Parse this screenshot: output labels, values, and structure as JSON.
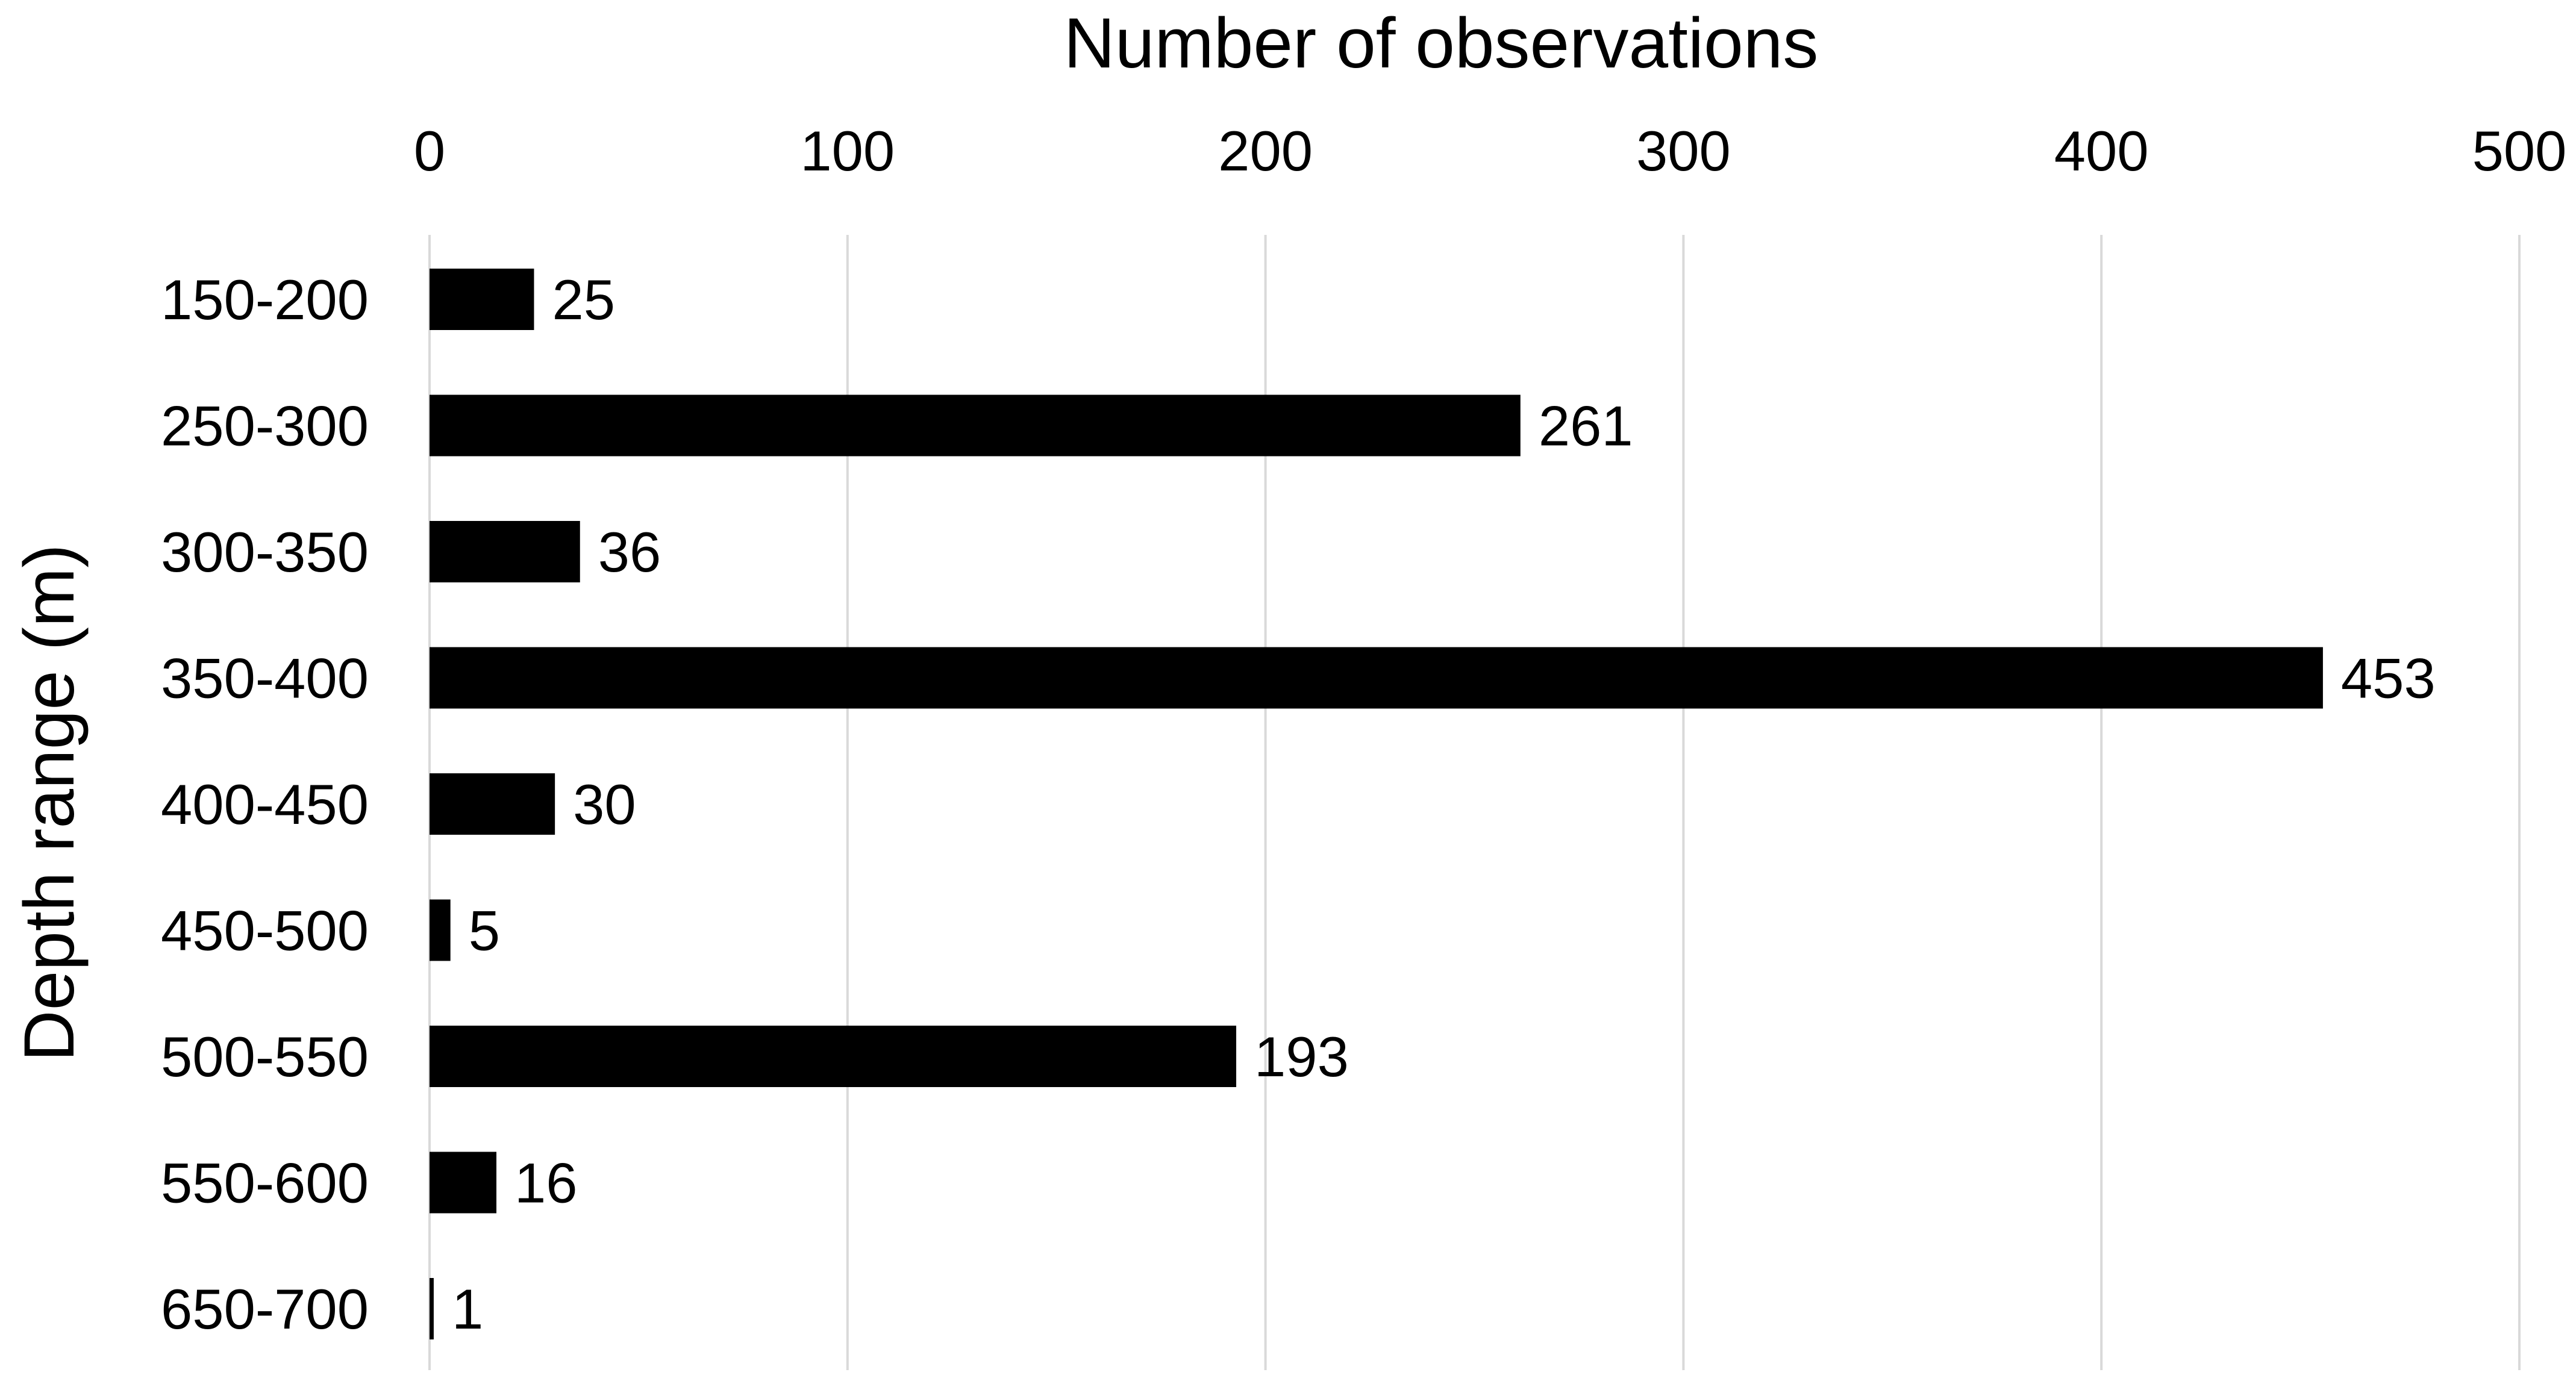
{
  "chart_data": {
    "type": "bar",
    "orientation": "horizontal",
    "xlabel": "Number of observations",
    "ylabel": "Depth range (m)",
    "categories": [
      "150-200",
      "250-300",
      "300-350",
      "350-400",
      "400-450",
      "450-500",
      "500-550",
      "550-600",
      "650-700"
    ],
    "values": [
      25,
      261,
      36,
      453,
      30,
      5,
      193,
      16,
      1
    ],
    "xlim": [
      0,
      500
    ],
    "xticks": [
      0,
      100,
      200,
      300,
      400,
      500
    ],
    "x_axis_position": "top",
    "grid": "vertical",
    "data_labels": true,
    "legend": "none",
    "bar_color": "#000000",
    "grid_color": "#d9d9d9"
  }
}
